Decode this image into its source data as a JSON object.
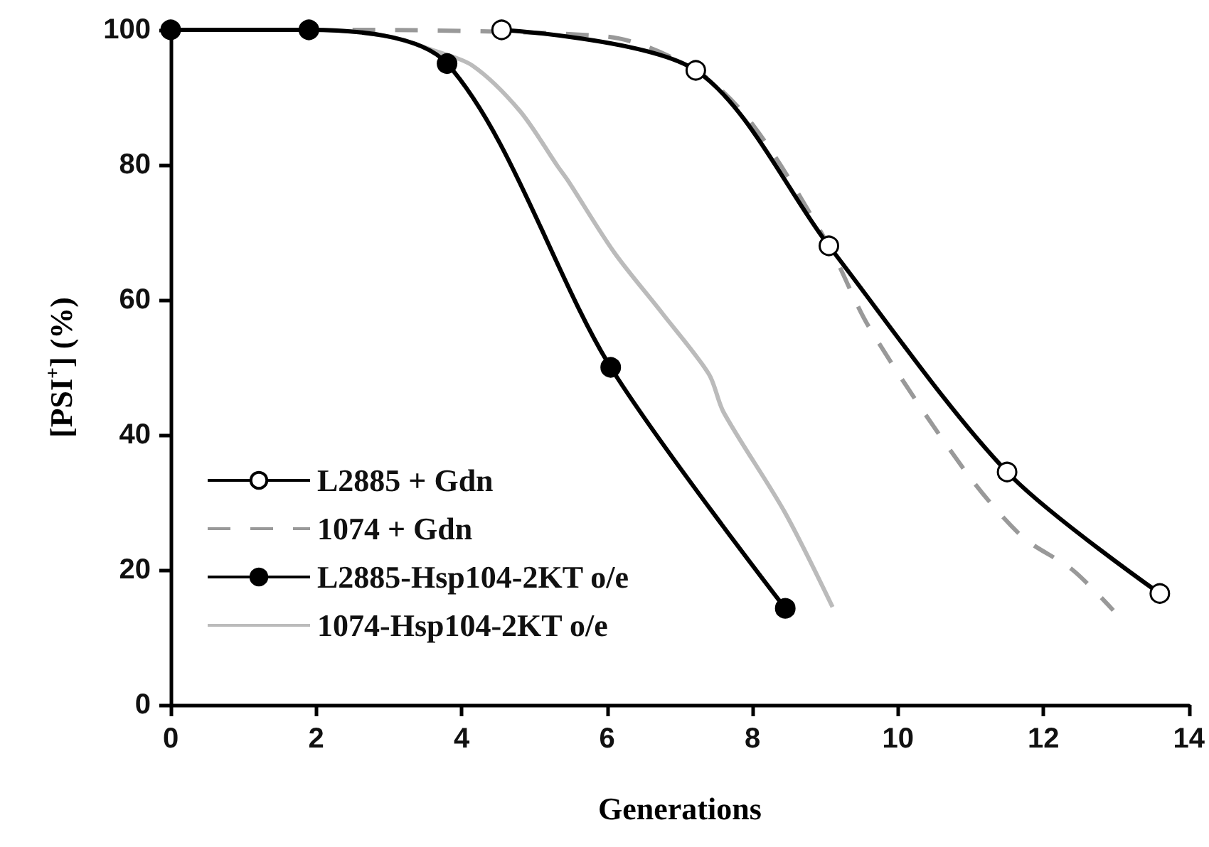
{
  "chart_data": {
    "type": "line",
    "xlabel": "Generations",
    "ylabel": "[PSI$^{+}$] (%)",
    "xlim": [
      0,
      14
    ],
    "xticks": [
      0,
      2,
      4,
      6,
      8,
      10,
      12,
      14
    ],
    "ylim": [
      0,
      100
    ],
    "yticks": [
      0,
      20,
      40,
      60,
      80,
      100
    ],
    "grid": false,
    "legend": "bottom left",
    "series": [
      {
        "name": "L2885 + Gdn",
        "color": "#000000",
        "marker": "circle",
        "colors": [
          "#ffffff",
          "#ffffff",
          "#ffffff",
          "#ffffff",
          "#ffffff"
        ],
        "line_style": "solid",
        "x": [
          4.55,
          7.22,
          9.05,
          11.5,
          13.6
        ],
        "values": [
          100,
          94,
          68,
          34.5,
          16.5
        ]
      },
      {
        "name": "1074 + Gdn",
        "color": "#999999",
        "marker": "none",
        "line_style": "dashed",
        "x": [
          2.5,
          6,
          7.22,
          8,
          9.05,
          9.6,
          10.9,
          11.7,
          12.4,
          12.96
        ],
        "values": [
          100,
          99,
          94,
          86,
          68,
          56,
          35,
          25,
          20,
          14
        ]
      },
      {
        "name": "L2885-Hsp104-2KT o/e",
        "color": "#000000",
        "marker": "circle",
        "line_style": "solid",
        "x": [
          0,
          1.9,
          3.8,
          6.05,
          8.45
        ],
        "values": [
          100,
          100,
          95,
          50,
          14.3
        ]
      },
      {
        "name": "1074-Hsp104-2KT o/e",
        "color": "#bbbbbb",
        "marker": "none",
        "line_style": "solid",
        "x": [
          0,
          2,
          3,
          3.6,
          4.15,
          4.8,
          5.32,
          5.46,
          6.1,
          6.76,
          7.4,
          7.6,
          8.44,
          9.1
        ],
        "values": [
          100,
          100,
          99,
          97,
          94.7,
          88,
          79.8,
          77.7,
          67,
          58,
          49,
          43.4,
          28.6,
          14.5
        ]
      }
    ]
  }
}
